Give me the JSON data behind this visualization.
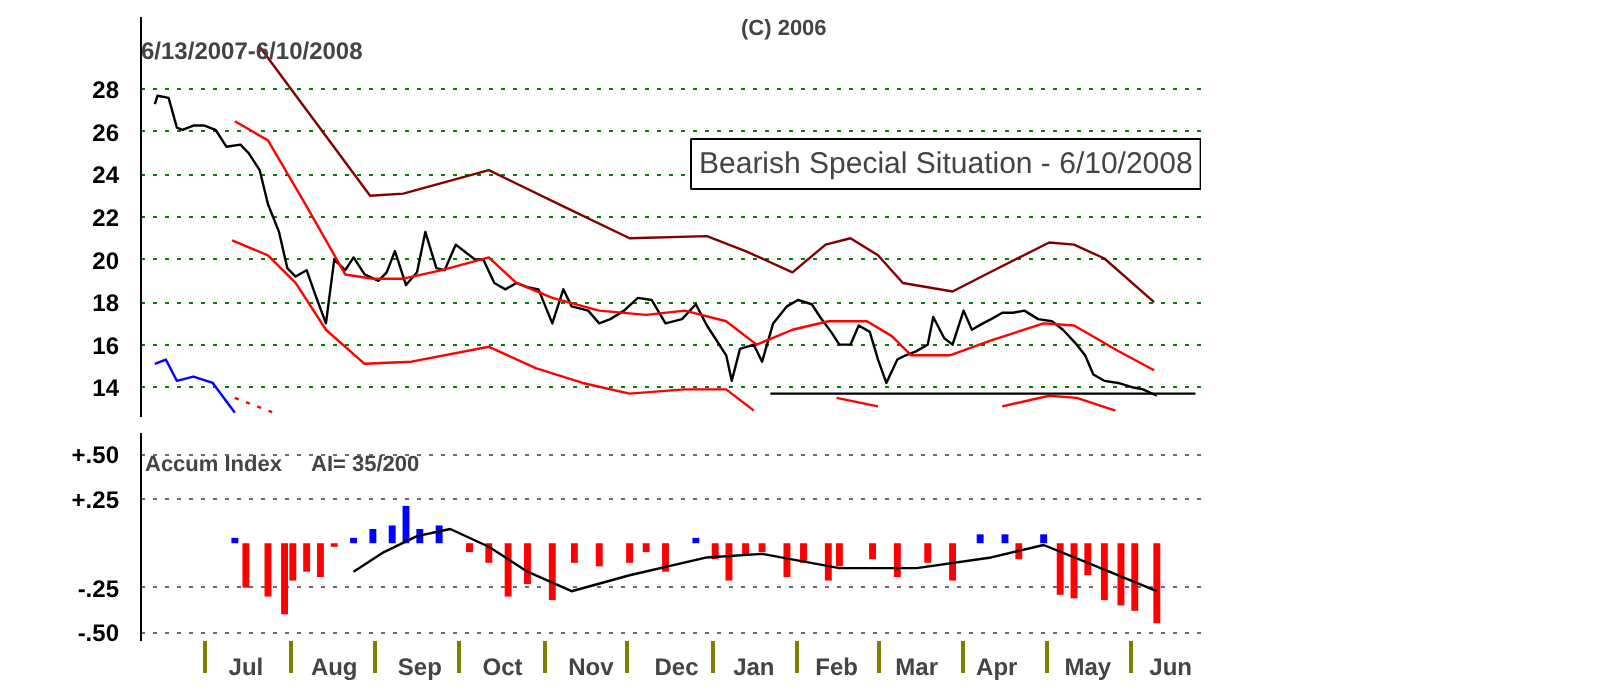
{
  "chart_data": [
    {
      "type": "line",
      "annotations": [
        "6/13/2007-6/10/2008",
        "Bearish Special Situation - 6/10/2008",
        "(C) 2006"
      ],
      "xlim": [
        "2007-06-08",
        "2008-06-26"
      ],
      "ylim": [
        12.6,
        31.4
      ],
      "yticks": [
        14,
        16,
        18,
        20,
        22,
        24,
        26,
        28
      ],
      "grid": "y",
      "tick_labels": "y",
      "marker": "none",
      "series": [
        {
          "color": "#000000",
          "x": [
            "2007-06-13",
            "2007-06-14",
            "2007-06-18",
            "2007-06-21",
            "2007-06-23",
            "2007-06-27",
            "2007-07-01",
            "2007-07-05",
            "2007-07-09",
            "2007-07-14",
            "2007-07-17",
            "2007-07-21",
            "2007-07-24",
            "2007-07-28",
            "2007-07-31",
            "2007-08-03",
            "2007-08-07",
            "2007-08-10",
            "2007-08-14",
            "2007-08-17",
            "2007-08-21",
            "2007-08-24",
            "2007-08-28",
            "2007-09-02",
            "2007-09-05",
            "2007-09-08",
            "2007-09-12",
            "2007-09-16",
            "2007-09-19",
            "2007-09-23",
            "2007-09-26",
            "2007-09-30",
            "2007-10-03",
            "2007-10-07",
            "2007-10-10",
            "2007-10-14",
            "2007-10-18",
            "2007-10-22",
            "2007-10-26",
            "2007-10-30",
            "2007-11-04",
            "2007-11-08",
            "2007-11-11",
            "2007-11-17",
            "2007-11-21",
            "2007-11-25",
            "2007-11-30",
            "2007-12-05",
            "2007-12-10",
            "2007-12-15",
            "2007-12-21",
            "2007-12-26",
            "2007-12-30",
            "2008-01-02",
            "2008-01-06",
            "2008-01-08",
            "2008-01-11",
            "2008-01-16",
            "2008-01-19",
            "2008-01-23",
            "2008-01-28",
            "2008-02-01",
            "2008-02-06",
            "2008-02-09",
            "2008-02-13",
            "2008-02-16",
            "2008-02-20",
            "2008-02-23",
            "2008-02-27",
            "2008-03-01",
            "2008-03-04",
            "2008-03-08",
            "2008-03-11",
            "2008-03-15",
            "2008-03-19",
            "2008-03-21",
            "2008-03-25",
            "2008-03-28",
            "2008-04-01",
            "2008-04-04",
            "2008-04-08",
            "2008-04-11",
            "2008-04-15",
            "2008-04-19",
            "2008-04-23",
            "2008-04-28",
            "2008-05-03",
            "2008-05-07",
            "2008-05-12",
            "2008-05-15",
            "2008-05-18",
            "2008-05-22",
            "2008-05-27",
            "2008-06-01",
            "2008-06-05",
            "2008-06-10"
          ],
          "values": [
            27.3,
            27.7,
            27.6,
            26.2,
            26.1,
            26.3,
            26.3,
            26.1,
            25.3,
            25.4,
            25.0,
            24.2,
            22.6,
            21.3,
            19.6,
            19.2,
            19.5,
            18.4,
            17.0,
            20.0,
            19.5,
            20.1,
            19.3,
            19.0,
            19.4,
            20.4,
            18.8,
            19.4,
            21.3,
            19.6,
            19.5,
            20.7,
            20.4,
            20.0,
            20.0,
            18.9,
            18.6,
            18.9,
            18.7,
            18.6,
            17.0,
            18.6,
            17.8,
            17.6,
            17.0,
            17.2,
            17.6,
            18.2,
            18.1,
            17.0,
            17.2,
            17.9,
            16.9,
            16.3,
            15.5,
            14.3,
            15.8,
            16.0,
            15.2,
            17.0,
            17.8,
            18.1,
            17.9,
            17.3,
            16.6,
            16.0,
            16.0,
            16.9,
            16.6,
            15.3,
            14.2,
            15.3,
            15.5,
            15.7,
            16.0,
            17.3,
            16.3,
            16.0,
            17.6,
            16.7,
            17.0,
            17.2,
            17.5,
            17.5,
            17.6,
            17.2,
            17.1,
            16.7,
            16.0,
            15.5,
            14.6,
            14.3,
            14.2,
            14.0,
            13.9,
            13.6
          ]
        },
        {
          "color": "#800000",
          "x": [
            "2007-07-21",
            "2007-08-30",
            "2007-09-11",
            "2007-10-12",
            "2007-11-08",
            "2007-12-02",
            "2007-12-30",
            "2008-01-13",
            "2008-01-30",
            "2008-02-11",
            "2008-02-20",
            "2008-03-01",
            "2008-03-10",
            "2008-03-28",
            "2008-04-09",
            "2008-05-02",
            "2008-05-11",
            "2008-05-22",
            "2008-06-09"
          ],
          "values": [
            30.0,
            23.0,
            23.1,
            24.2,
            22.5,
            21.0,
            21.1,
            20.4,
            19.4,
            20.7,
            21.0,
            20.2,
            18.9,
            18.5,
            19.3,
            20.8,
            20.7,
            20.05,
            18.0
          ]
        },
        {
          "color": "#ff0000",
          "x": [
            "2007-07-12",
            "2007-07-24",
            "2007-08-07",
            "2007-08-21",
            "2007-08-31",
            "2007-09-11",
            "2007-09-25",
            "2007-10-12",
            "2007-10-22",
            "2007-11-04",
            "2007-11-21",
            "2007-12-08",
            "2007-12-22",
            "2008-01-06",
            "2008-01-17",
            "2008-01-30",
            "2008-02-12",
            "2008-02-26",
            "2008-03-06",
            "2008-03-13",
            "2008-03-27",
            "2008-04-11",
            "2008-04-30",
            "2008-05-11",
            "2008-05-27",
            "2008-06-09"
          ],
          "values": [
            26.5,
            25.6,
            22.5,
            19.3,
            19.1,
            19.1,
            19.5,
            20.1,
            18.9,
            18.2,
            17.6,
            17.4,
            17.6,
            17.1,
            16.0,
            16.7,
            17.1,
            17.1,
            16.4,
            15.5,
            15.5,
            16.2,
            17.0,
            16.9,
            15.7,
            14.8
          ]
        },
        {
          "color": "#ff0000",
          "x": [
            "2007-07-11",
            "2007-07-24",
            "2007-08-03",
            "2007-08-14",
            "2007-08-28",
            "2007-09-14",
            "2007-10-12",
            "2007-10-29",
            "2007-11-15",
            "2007-12-02",
            "2007-12-22",
            "2008-01-06",
            "2008-01-16",
            "2008-01-30",
            "2008-02-15",
            "2008-03-01",
            "2008-03-20",
            "2008-04-15",
            "2008-05-02",
            "2008-05-12",
            "2008-05-26"
          ],
          "values": [
            20.9,
            20.2,
            18.9,
            16.7,
            15.1,
            15.2,
            15.9,
            14.9,
            14.2,
            13.7,
            13.9,
            13.9,
            12.9,
            null,
            13.5,
            13.1,
            null,
            13.1,
            13.6,
            13.5,
            12.9
          ]
        },
        {
          "color": "#0000ff",
          "x": [
            "2007-06-13",
            "2007-06-17",
            "2007-06-21",
            "2007-06-27",
            "2007-07-04",
            "2007-07-12"
          ],
          "values": [
            15.1,
            15.3,
            14.3,
            14.5,
            14.2,
            12.8
          ]
        },
        {
          "color": "#ff0000",
          "line_style": "dotted",
          "x": [
            "2007-07-12",
            "2007-07-26"
          ],
          "values": [
            13.5,
            12.8
          ]
        },
        {
          "color": "#000000",
          "x": [
            "2008-01-22",
            "2008-06-24"
          ],
          "values": [
            13.7,
            13.7
          ]
        }
      ]
    },
    {
      "type": "bar",
      "ylabel": "Accum Index",
      "annotations": [
        "AI= 35/200"
      ],
      "xlim": [
        "2007-06-08",
        "2008-06-26"
      ],
      "ylim": [
        -0.55,
        0.62
      ],
      "grid": "y",
      "yticks": [
        {
          "value": 0.5,
          "label": "+.50"
        },
        {
          "value": 0.25,
          "label": "+.25"
        },
        {
          "value": -0.25,
          "label": "-.25"
        },
        {
          "value": -0.5,
          "label": "-.50"
        }
      ],
      "xticks": [
        {
          "value": "2007-07-01",
          "label": null
        },
        {
          "value": "2007-07-16",
          "label": "Jul"
        },
        {
          "value": "2007-08-01",
          "label": null
        },
        {
          "value": "2007-08-17",
          "label": "Aug"
        },
        {
          "value": "2007-09-01",
          "label": null
        },
        {
          "value": "2007-09-17",
          "label": "Sep"
        },
        {
          "value": "2007-10-01",
          "label": null
        },
        {
          "value": "2007-10-17",
          "label": "Oct"
        },
        {
          "value": "2007-11-01",
          "label": null
        },
        {
          "value": "2007-11-18",
          "label": "Nov"
        },
        {
          "value": "2007-12-01",
          "label": null
        },
        {
          "value": "2007-12-19",
          "label": "Dec"
        },
        {
          "value": "2008-01-01",
          "label": null
        },
        {
          "value": "2008-01-16",
          "label": "Jan"
        },
        {
          "value": "2008-02-01",
          "label": null
        },
        {
          "value": "2008-02-15",
          "label": "Feb"
        },
        {
          "value": "2008-03-01",
          "label": null
        },
        {
          "value": "2008-03-15",
          "label": "Mar"
        },
        {
          "value": "2008-04-01",
          "label": null
        },
        {
          "value": "2008-04-13",
          "label": "Apr"
        },
        {
          "value": "2008-05-01",
          "label": null
        },
        {
          "value": "2008-05-16",
          "label": "May"
        },
        {
          "value": "2008-06-01",
          "label": null
        },
        {
          "value": "2008-06-15",
          "label": "Jun"
        }
      ],
      "series": [
        {
          "type": "bar",
          "x": [
            "2007-07-12",
            "2007-07-16",
            "2007-07-24",
            "2007-07-30",
            "2007-08-02",
            "2007-08-07",
            "2007-08-12",
            "2007-08-17",
            "2007-08-24",
            "2007-08-31",
            "2007-09-07",
            "2007-09-12",
            "2007-09-17",
            "2007-09-24",
            "2007-09-30",
            "2007-10-05",
            "2007-10-12",
            "2007-10-19",
            "2007-10-26",
            "2007-11-04",
            "2007-11-12",
            "2007-11-21",
            "2007-12-02",
            "2007-12-08",
            "2007-12-15",
            "2007-12-26",
            "2008-01-02",
            "2008-01-07",
            "2008-01-13",
            "2008-01-19",
            "2008-01-28",
            "2008-02-03",
            "2008-02-12",
            "2008-02-16",
            "2008-02-28",
            "2008-03-08",
            "2008-03-19",
            "2008-03-28",
            "2008-04-07",
            "2008-04-16",
            "2008-04-21",
            "2008-04-30",
            "2008-05-06",
            "2008-05-11",
            "2008-05-16",
            "2008-05-22",
            "2008-05-28",
            "2008-06-02",
            "2008-06-10"
          ],
          "values": [
            0.03,
            -0.25,
            -0.3,
            -0.4,
            -0.21,
            -0.16,
            -0.19,
            -0.02,
            0.03,
            0.08,
            0.1,
            0.21,
            0.08,
            0.1,
            0,
            -0.05,
            -0.11,
            -0.3,
            -0.23,
            -0.32,
            -0.11,
            -0.13,
            -0.11,
            -0.05,
            -0.16,
            0.03,
            -0.09,
            -0.21,
            -0.07,
            -0.05,
            -0.19,
            -0.11,
            -0.21,
            -0.13,
            -0.09,
            -0.19,
            -0.11,
            -0.21,
            0.05,
            0.05,
            -0.09,
            0.05,
            -0.29,
            -0.31,
            -0.18,
            -0.32,
            -0.35,
            -0.38,
            -0.45
          ],
          "colors": [
            "#0000ff",
            "#ff0000",
            "#ff0000",
            "#ff0000",
            "#ff0000",
            "#ff0000",
            "#ff0000",
            "#ff0000",
            "#0000ff",
            "#0000ff",
            "#0000ff",
            "#0000ff",
            "#0000ff",
            "#0000ff",
            "#ff0000",
            "#ff0000",
            "#ff0000",
            "#ff0000",
            "#ff0000",
            "#ff0000",
            "#ff0000",
            "#ff0000",
            "#ff0000",
            "#ff0000",
            "#ff0000",
            "#0000ff",
            "#ff0000",
            "#ff0000",
            "#ff0000",
            "#ff0000",
            "#ff0000",
            "#ff0000",
            "#ff0000",
            "#ff0000",
            "#ff0000",
            "#ff0000",
            "#ff0000",
            "#ff0000",
            "#0000ff",
            "#0000ff",
            "#ff0000",
            "#0000ff",
            "#ff0000",
            "#ff0000",
            "#ff0000",
            "#ff0000",
            "#ff0000",
            "#ff0000",
            "#ff0000"
          ]
        },
        {
          "type": "line",
          "color": "#000000",
          "x": [
            "2007-08-24",
            "2007-09-04",
            "2007-09-16",
            "2007-09-28",
            "2007-10-12",
            "2007-10-26",
            "2007-11-11",
            "2007-12-02",
            "2007-12-30",
            "2008-01-19",
            "2008-02-16",
            "2008-03-15",
            "2008-04-11",
            "2008-04-30",
            "2008-05-16",
            "2008-06-10"
          ],
          "values": [
            -0.16,
            -0.05,
            0.04,
            0.08,
            -0.02,
            -0.16,
            -0.27,
            -0.18,
            -0.08,
            -0.06,
            -0.14,
            -0.14,
            -0.08,
            -0.01,
            -0.11,
            -0.27
          ]
        }
      ]
    }
  ]
}
